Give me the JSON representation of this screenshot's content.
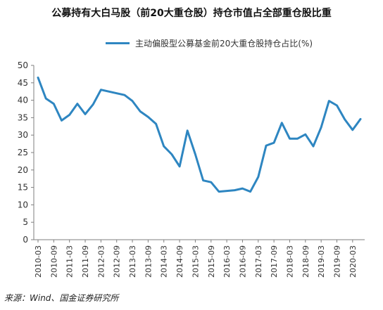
{
  "chart_data": {
    "type": "line",
    "title": "公募持有大白马股（前20大重仓股）持仓市值占全部重仓股比重",
    "series": [
      {
        "name": "主动偏股型公募基金前20大重仓股持仓占比(%)",
        "color": "#2e86c1",
        "values": [
          46.5,
          40.5,
          39.0,
          34.2,
          35.8,
          39.0,
          36.0,
          38.8,
          43.0,
          42.5,
          42.0,
          41.5,
          39.8,
          36.8,
          35.2,
          33.2,
          26.8,
          24.5,
          21.0,
          31.3,
          24.5,
          17.0,
          16.5,
          13.8,
          14.0,
          14.2,
          14.7,
          13.8,
          18.0,
          27.0,
          27.8,
          33.5,
          29.0,
          29.0,
          30.2,
          26.8,
          32.2,
          39.8,
          38.5,
          34.5,
          31.5,
          34.6
        ]
      }
    ],
    "x": [
      "2010-03",
      "2010-06",
      "2010-09",
      "2010-12",
      "2011-03",
      "2011-06",
      "2011-09",
      "2011-12",
      "2012-03",
      "2012-06",
      "2012-09",
      "2012-12",
      "2013-03",
      "2013-06",
      "2013-09",
      "2013-12",
      "2014-03",
      "2014-06",
      "2014-09",
      "2014-12",
      "2015-03",
      "2015-06",
      "2015-09",
      "2015-12",
      "2016-03",
      "2016-06",
      "2016-09",
      "2016-12",
      "2017-03",
      "2017-06",
      "2017-09",
      "2017-12",
      "2018-03",
      "2018-06",
      "2018-09",
      "2018-12",
      "2019-03",
      "2019-06",
      "2019-09",
      "2019-12",
      "2020-03",
      "2020-06"
    ],
    "tick_labels": [
      "2010-03",
      "2010-09",
      "2011-03",
      "2011-09",
      "2012-03",
      "2012-09",
      "2013-03",
      "2013-09",
      "2014-03",
      "2014-09",
      "2015-03",
      "2015-09",
      "2016-03",
      "2016-09",
      "2017-03",
      "2017-09",
      "2018-03",
      "2018-09",
      "2019-03",
      "2019-09",
      "2020-03"
    ],
    "y_ticks": [
      0,
      5,
      10,
      15,
      20,
      25,
      30,
      35,
      40,
      45,
      50
    ],
    "ylim": [
      0,
      50
    ],
    "legend_position": "top",
    "grid": false
  },
  "source": "来源：Wind、国金证券研究所"
}
